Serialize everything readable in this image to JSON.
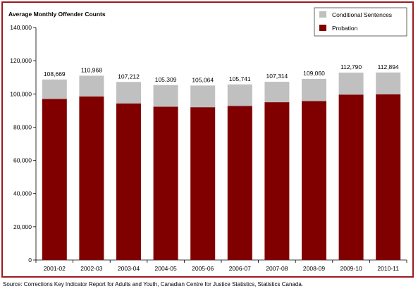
{
  "chart_data": {
    "type": "bar",
    "stacked": true,
    "title": "Average Monthly Offender Counts",
    "categories": [
      "2001-02",
      "2002-03",
      "2003-04",
      "2004-05",
      "2005-06",
      "2006-07",
      "2007-08",
      "2008-09",
      "2009-10",
      "2010-11"
    ],
    "series": [
      {
        "name": "Probation",
        "color": "#800000",
        "values": [
          97000,
          98500,
          94300,
          92300,
          92000,
          92800,
          95000,
          95700,
          99600,
          99800
        ]
      },
      {
        "name": "Conditional Sentences",
        "color": "#c0c0c0",
        "values": [
          11669,
          12468,
          12912,
          13009,
          13064,
          12941,
          12314,
          13360,
          13190,
          13094
        ]
      }
    ],
    "totals": [
      "108,669",
      "110,968",
      "107,212",
      "105,309",
      "105,064",
      "105,741",
      "107,314",
      "109,060",
      "112,790",
      "112,894"
    ],
    "totals_values": [
      108669,
      110968,
      107212,
      105309,
      105064,
      105741,
      107314,
      109060,
      112790,
      112894
    ],
    "y_ticks": [
      "0",
      "20,000",
      "40,000",
      "60,000",
      "80,000",
      "100,000",
      "120,000",
      "140,000"
    ],
    "ylim": [
      0,
      140000
    ],
    "grid": false,
    "legend_position": "top-right",
    "legend": [
      {
        "label": "Conditional Sentences",
        "color": "#c0c0c0"
      },
      {
        "label": "Probation",
        "color": "#800000"
      }
    ]
  },
  "source": "Source: Corrections Key Indicator Report for Adults and Youth, Canadian Centre for Justice Statistics, Statistics Canada."
}
